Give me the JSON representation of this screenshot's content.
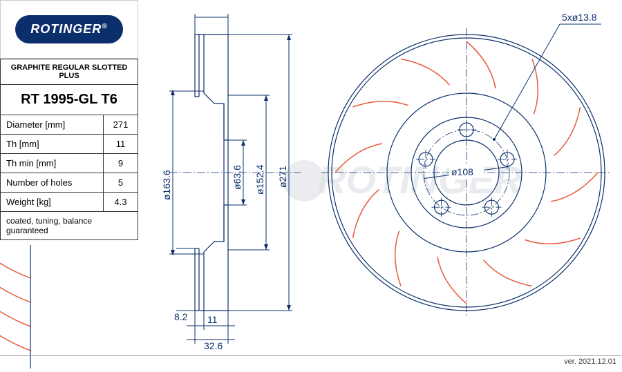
{
  "brand": "ROTINGER",
  "product_line": "GRAPHITE REGULAR SLOTTED PLUS",
  "part_number": "RT 1995-GL T6",
  "specs": [
    {
      "label": "Diameter [mm]",
      "value": "271"
    },
    {
      "label": "Th [mm]",
      "value": "11"
    },
    {
      "label": "Th min [mm]",
      "value": "9"
    },
    {
      "label": "Number of holes",
      "value": "5"
    },
    {
      "label": "Weight [kg]",
      "value": "4.3"
    }
  ],
  "note": "coated, tuning, balance guaranteed",
  "version": "ver. 2021.12.01",
  "colors": {
    "brand_blue": "#0a2f6b",
    "slot_orange": "#e85a3a",
    "watermark": "#d8dce2",
    "border": "#333333"
  },
  "cross_section": {
    "diameters_mm": {
      "outer": 271,
      "face_od": 163.6,
      "hub_bore": 63.6,
      "face_id": 152.4
    },
    "thickness_mm": 11,
    "hat_depth_mm": 32.6,
    "hat_wall_mm": 8.2
  },
  "front_view": {
    "bolt_pattern": "5xø13.8",
    "bolt_circle_mm": 108,
    "outer_diameter_mm": 271,
    "num_slots": 12,
    "num_holes": 5
  },
  "dim_labels": {
    "d1": "ø163.6",
    "d2": "ø63.6",
    "d3": "ø152.4",
    "d4": "ø271",
    "t1": "11",
    "t2": "32.6",
    "t3": "8.2",
    "bcd": "ø108",
    "bolt": "5xø13.8"
  }
}
